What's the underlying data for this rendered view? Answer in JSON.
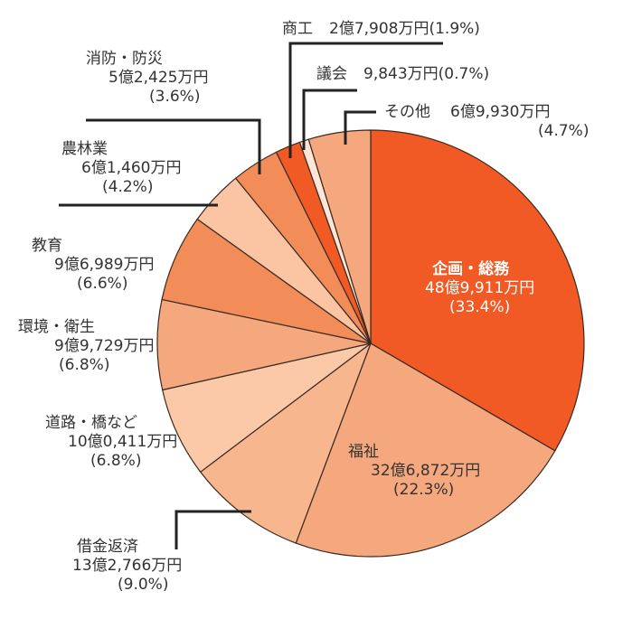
{
  "chart_data": {
    "type": "pie",
    "title": "",
    "start": "top",
    "direction": "clockwise",
    "slices": [
      {
        "name": "企画・総務",
        "amount": "48億9,911万円",
        "value": 33.4,
        "pct": "(33.4%)",
        "color": "#f15a24"
      },
      {
        "name": "福祉",
        "amount": "32億6,872万円",
        "value": 22.3,
        "pct": "(22.3%)",
        "color": "#f5a77d"
      },
      {
        "name": "借金返済",
        "amount": "13億2,766万円",
        "value": 9.0,
        "pct": "(9.0%)",
        "color": "#f8b68e"
      },
      {
        "name": "道路・橋など",
        "amount": "10億0,411万円",
        "value": 6.8,
        "pct": "(6.8%)",
        "color": "#fbc8a8"
      },
      {
        "name": "環境・衛生",
        "amount": "9億9,729万円",
        "value": 6.8,
        "pct": "(6.8%)",
        "color": "#f5a77d"
      },
      {
        "name": "教育",
        "amount": "9億6,989万円",
        "value": 6.6,
        "pct": "(6.6%)",
        "color": "#f28c58"
      },
      {
        "name": "農林業",
        "amount": "6億1,460万円",
        "value": 4.2,
        "pct": "(4.2%)",
        "color": "#fbc4a2"
      },
      {
        "name": "消防・防災",
        "amount": "5億2,425万円",
        "value": 3.6,
        "pct": "(3.6%)",
        "color": "#f28c58"
      },
      {
        "name": "商工",
        "amount": "2億7,908万円",
        "value": 1.9,
        "pct": "(1.9%)",
        "color": "#f15a24"
      },
      {
        "name": "議会",
        "amount": "9,843万円",
        "value": 0.7,
        "pct": "(0.7%)",
        "color": "#fde6d8"
      },
      {
        "name": "その他",
        "amount": "6億9,930万円",
        "value": 4.7,
        "pct": "(4.7%)",
        "color": "#f5a77d"
      }
    ]
  }
}
